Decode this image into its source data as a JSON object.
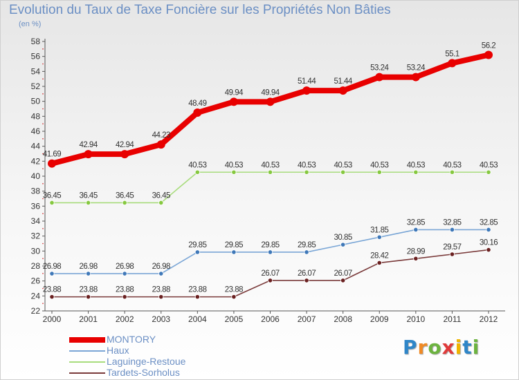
{
  "chart_data": {
    "type": "line",
    "title": "Evolution du Taux de Taxe Foncière sur les Propriétés Non Bâties",
    "unit_label": "(en %)",
    "x": [
      "2000",
      "2001",
      "2002",
      "2003",
      "2004",
      "2005",
      "2006",
      "2007",
      "2008",
      "2009",
      "2010",
      "2011",
      "2012"
    ],
    "ylim": [
      22,
      58
    ],
    "yticks": [
      22,
      24,
      26,
      28,
      30,
      32,
      34,
      36,
      38,
      40,
      42,
      44,
      46,
      48,
      50,
      52,
      54,
      56,
      58
    ],
    "grid": false,
    "legend_position": "bottom-left",
    "series": [
      {
        "name": "MONTORY",
        "color": "#e80000",
        "point_color": "#e80000",
        "emphasis": true,
        "values": [
          41.69,
          42.94,
          42.94,
          44.23,
          48.49,
          49.94,
          49.94,
          51.44,
          51.44,
          53.24,
          53.24,
          55.1,
          56.2
        ],
        "labels": [
          "41.69",
          "42.94",
          "42.94",
          "44.23",
          "48.49",
          "49.94",
          "49.94",
          "51.44",
          "51.44",
          "53.24",
          "53.24",
          "55.1",
          "56.2"
        ]
      },
      {
        "name": "Haux",
        "color": "#7aa6d6",
        "point_color": "#3f78b8",
        "emphasis": false,
        "values": [
          26.98,
          26.98,
          26.98,
          26.98,
          29.85,
          29.85,
          29.85,
          29.85,
          30.85,
          31.85,
          32.85,
          32.85,
          32.85
        ],
        "labels": [
          "26.98",
          "26.98",
          "26.98",
          "26.98",
          "29.85",
          "29.85",
          "29.85",
          "29.85",
          "30.85",
          "31.85",
          "32.85",
          "32.85",
          "32.85"
        ]
      },
      {
        "name": "Laguinge-Restoue",
        "color": "#a8dc7c",
        "point_color": "#86c840",
        "emphasis": false,
        "values": [
          36.45,
          36.45,
          36.45,
          36.45,
          40.53,
          40.53,
          40.53,
          40.53,
          40.53,
          40.53,
          40.53,
          40.53,
          40.53
        ],
        "labels": [
          "36.45",
          "36.45",
          "36.45",
          "36.45",
          "40.53",
          "40.53",
          "40.53",
          "40.53",
          "40.53",
          "40.53",
          "40.53",
          "40.53",
          "40.53"
        ]
      },
      {
        "name": "Tardets-Sorholus",
        "color": "#7a3a3a",
        "point_color": "#6a2020",
        "emphasis": false,
        "values": [
          23.88,
          23.88,
          23.88,
          23.88,
          23.88,
          23.88,
          26.07,
          26.07,
          26.07,
          28.42,
          28.99,
          29.57,
          30.16
        ],
        "labels": [
          "23.88",
          "23.88",
          "23.88",
          "23.88",
          "23.88",
          "23.88",
          "26.07",
          "26.07",
          "26.07",
          "28.42",
          "28.99",
          "29.57",
          "30.16"
        ]
      }
    ]
  },
  "branding": {
    "logo_text": "Proxiti",
    "letter_colors": [
      "#2f86c8",
      "#f08a24",
      "#6cb33f",
      "#e03a3a",
      "#f0b400",
      "#2f86c8",
      "#6cb33f"
    ]
  }
}
